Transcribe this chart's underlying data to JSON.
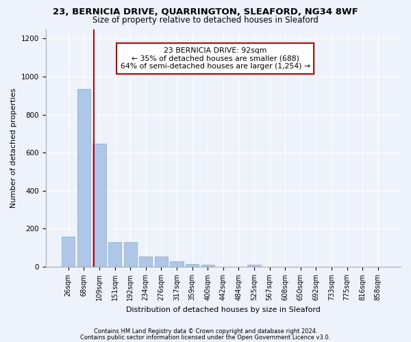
{
  "title1": "23, BERNICIA DRIVE, QUARRINGTON, SLEAFORD, NG34 8WF",
  "title2": "Size of property relative to detached houses in Sleaford",
  "xlabel": "Distribution of detached houses by size in Sleaford",
  "ylabel": "Number of detached properties",
  "footer1": "Contains HM Land Registry data © Crown copyright and database right 2024.",
  "footer2": "Contains public sector information licensed under the Open Government Licence v3.0.",
  "annotation_title": "23 BERNICIA DRIVE: 92sqm",
  "annotation_line1": "← 35% of detached houses are smaller (688)",
  "annotation_line2": "64% of semi-detached houses are larger (1,254) →",
  "bar_labels": [
    "26sqm",
    "68sqm",
    "109sqm",
    "151sqm",
    "192sqm",
    "234sqm",
    "276sqm",
    "317sqm",
    "359sqm",
    "400sqm",
    "442sqm",
    "484sqm",
    "525sqm",
    "567sqm",
    "608sqm",
    "650sqm",
    "692sqm",
    "733sqm",
    "775sqm",
    "816sqm",
    "858sqm"
  ],
  "bar_values": [
    158,
    935,
    648,
    128,
    128,
    55,
    55,
    30,
    13,
    12,
    0,
    0,
    12,
    0,
    0,
    0,
    0,
    0,
    0,
    0,
    0
  ],
  "bar_color": "#aec6e8",
  "bar_edge_color": "#7bafd4",
  "vline_x": 1.65,
  "vline_color": "#cc0000",
  "annotation_box_color": "#cc0000",
  "ylim_max": 1250,
  "yticks": [
    0,
    200,
    400,
    600,
    800,
    1000,
    1200
  ],
  "bg_color": "#eef2fb",
  "grid_color": "#ffffff",
  "title1_fontsize": 9.5,
  "title2_fontsize": 8.5,
  "tick_fontsize": 7,
  "ylabel_fontsize": 8,
  "xlabel_fontsize": 8,
  "annotation_fontsize": 7.8,
  "footer_fontsize": 6
}
